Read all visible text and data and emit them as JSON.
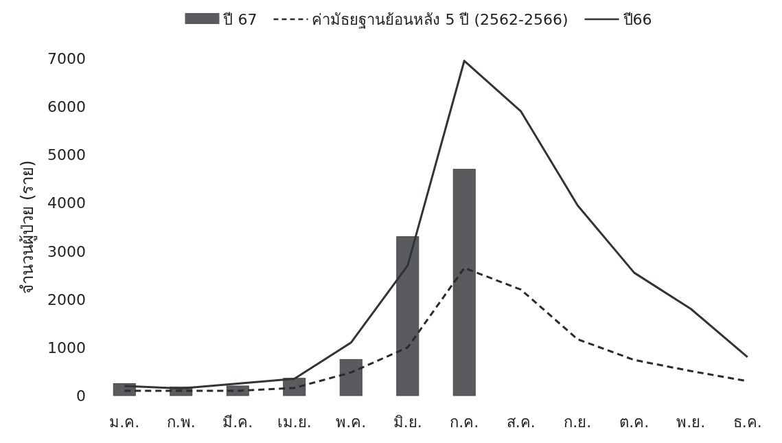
{
  "chart_data": {
    "type": "bar",
    "ylabel": "จำนวนผู้ป่วย (ราย)",
    "categories": [
      "ม.ค.",
      "ก.พ.",
      "มี.ค.",
      "เม.ย.",
      "พ.ค.",
      "มิ.ย.",
      "ก.ค.",
      "ส.ค.",
      "ก.ย.",
      "ต.ค.",
      "พ.ย.",
      "ธ.ค."
    ],
    "series": [
      {
        "name": "ปี 67",
        "color": "#595b5e",
        "values": [
          250,
          180,
          200,
          360,
          750,
          3300,
          4700,
          null,
          null,
          null,
          null,
          null
        ]
      },
      {
        "name": "ค่ามัธยฐานย้อนหลัง 5 ปี (2562-2566)",
        "type": "line",
        "line_style": "dashed",
        "color": "#2b2b2b",
        "values": [
          100,
          100,
          100,
          160,
          480,
          1000,
          2650,
          2200,
          1170,
          740,
          510,
          300
        ]
      },
      {
        "name": "ปี66",
        "type": "line",
        "line_style": "solid",
        "color": "#2f3436",
        "values": [
          200,
          150,
          250,
          350,
          1100,
          2700,
          6950,
          5900,
          3950,
          2550,
          1800,
          800
        ]
      }
    ],
    "ylim": [
      0,
      7000
    ],
    "yticks": [
      0,
      1000,
      2000,
      3000,
      4000,
      5000,
      6000,
      7000
    ],
    "legend": "top",
    "grid": false
  }
}
